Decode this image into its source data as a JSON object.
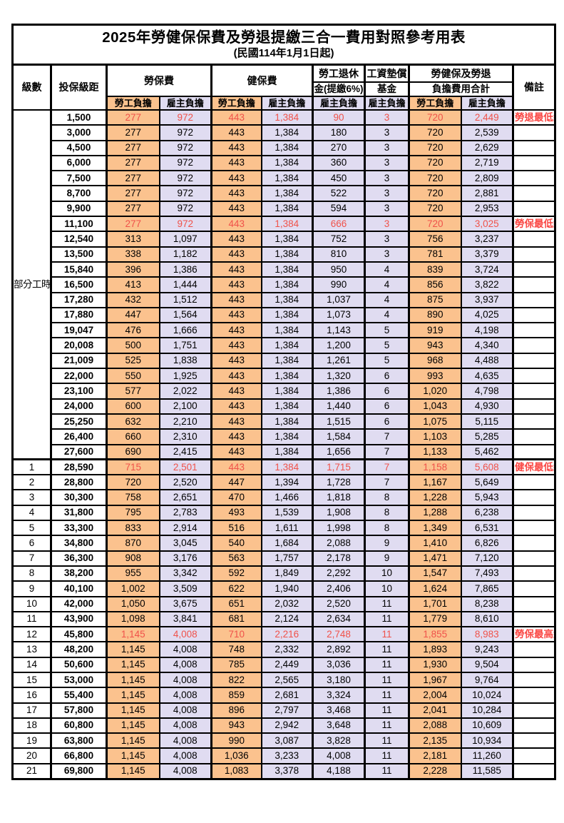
{
  "title": "2025年勞健保保費及勞退提繳三合一費用對照參考用表",
  "subtitle": "(民國114年1月1日起)",
  "colors": {
    "employee_bg": "#FBC28E",
    "employer_bg": "#E0DCF1",
    "key_value_red": "#F0524A",
    "remark_red": "#FA4642",
    "border": "#000000"
  },
  "columns": {
    "level": "級數",
    "bracket": "投保級距",
    "labor_fee": "勞保費",
    "health_fee": "健保費",
    "pension_line1": "勞工退休",
    "pension_line2": "金(提繳6%)",
    "wage_fund_line1": "工資墊償",
    "wage_fund_line2": "基金",
    "total_line1": "勞健保及勞退",
    "total_line2": "負擔費用合計",
    "remark": "備註",
    "employee": "勞工負擔",
    "employer": "雇主負擔"
  },
  "part_time_label": "部分工時",
  "rows": [
    {
      "l": "",
      "b": "1,500",
      "v": [
        "277",
        "972",
        "443",
        "1,384",
        "90",
        "3",
        "720",
        "2,449"
      ],
      "r": "勞退最低級距",
      "k": true
    },
    {
      "l": "",
      "b": "3,000",
      "v": [
        "277",
        "972",
        "443",
        "1,384",
        "180",
        "3",
        "720",
        "2,539"
      ],
      "r": "",
      "k": false
    },
    {
      "l": "",
      "b": "4,500",
      "v": [
        "277",
        "972",
        "443",
        "1,384",
        "270",
        "3",
        "720",
        "2,629"
      ],
      "r": "",
      "k": false
    },
    {
      "l": "",
      "b": "6,000",
      "v": [
        "277",
        "972",
        "443",
        "1,384",
        "360",
        "3",
        "720",
        "2,719"
      ],
      "r": "",
      "k": false
    },
    {
      "l": "",
      "b": "7,500",
      "v": [
        "277",
        "972",
        "443",
        "1,384",
        "450",
        "3",
        "720",
        "2,809"
      ],
      "r": "",
      "k": false
    },
    {
      "l": "",
      "b": "8,700",
      "v": [
        "277",
        "972",
        "443",
        "1,384",
        "522",
        "3",
        "720",
        "2,881"
      ],
      "r": "",
      "k": false
    },
    {
      "l": "",
      "b": "9,900",
      "v": [
        "277",
        "972",
        "443",
        "1,384",
        "594",
        "3",
        "720",
        "2,953"
      ],
      "r": "",
      "k": false
    },
    {
      "l": "",
      "b": "11,100",
      "v": [
        "277",
        "972",
        "443",
        "1,384",
        "666",
        "3",
        "720",
        "3,025"
      ],
      "r": "勞保最低級距",
      "k": true
    },
    {
      "l": "",
      "b": "12,540",
      "v": [
        "313",
        "1,097",
        "443",
        "1,384",
        "752",
        "3",
        "756",
        "3,237"
      ],
      "r": "",
      "k": false
    },
    {
      "l": "",
      "b": "13,500",
      "v": [
        "338",
        "1,182",
        "443",
        "1,384",
        "810",
        "3",
        "781",
        "3,379"
      ],
      "r": "",
      "k": false
    },
    {
      "l": "",
      "b": "15,840",
      "v": [
        "396",
        "1,386",
        "443",
        "1,384",
        "950",
        "4",
        "839",
        "3,724"
      ],
      "r": "",
      "k": false
    },
    {
      "l": "",
      "b": "16,500",
      "v": [
        "413",
        "1,444",
        "443",
        "1,384",
        "990",
        "4",
        "856",
        "3,822"
      ],
      "r": "",
      "k": false
    },
    {
      "l": "",
      "b": "17,280",
      "v": [
        "432",
        "1,512",
        "443",
        "1,384",
        "1,037",
        "4",
        "875",
        "3,937"
      ],
      "r": "",
      "k": false
    },
    {
      "l": "",
      "b": "17,880",
      "v": [
        "447",
        "1,564",
        "443",
        "1,384",
        "1,073",
        "4",
        "890",
        "4,025"
      ],
      "r": "",
      "k": false
    },
    {
      "l": "",
      "b": "19,047",
      "v": [
        "476",
        "1,666",
        "443",
        "1,384",
        "1,143",
        "5",
        "919",
        "4,198"
      ],
      "r": "",
      "k": false
    },
    {
      "l": "",
      "b": "20,008",
      "v": [
        "500",
        "1,751",
        "443",
        "1,384",
        "1,200",
        "5",
        "943",
        "4,340"
      ],
      "r": "",
      "k": false
    },
    {
      "l": "",
      "b": "21,009",
      "v": [
        "525",
        "1,838",
        "443",
        "1,384",
        "1,261",
        "5",
        "968",
        "4,488"
      ],
      "r": "",
      "k": false
    },
    {
      "l": "",
      "b": "22,000",
      "v": [
        "550",
        "1,925",
        "443",
        "1,384",
        "1,320",
        "6",
        "993",
        "4,635"
      ],
      "r": "",
      "k": false
    },
    {
      "l": "",
      "b": "23,100",
      "v": [
        "577",
        "2,022",
        "443",
        "1,384",
        "1,386",
        "6",
        "1,020",
        "4,798"
      ],
      "r": "",
      "k": false
    },
    {
      "l": "",
      "b": "24,000",
      "v": [
        "600",
        "2,100",
        "443",
        "1,384",
        "1,440",
        "6",
        "1,043",
        "4,930"
      ],
      "r": "",
      "k": false
    },
    {
      "l": "",
      "b": "25,250",
      "v": [
        "632",
        "2,210",
        "443",
        "1,384",
        "1,515",
        "6",
        "1,075",
        "5,115"
      ],
      "r": "",
      "k": false
    },
    {
      "l": "",
      "b": "26,400",
      "v": [
        "660",
        "2,310",
        "443",
        "1,384",
        "1,584",
        "7",
        "1,103",
        "5,285"
      ],
      "r": "",
      "k": false
    },
    {
      "l": "",
      "b": "27,600",
      "v": [
        "690",
        "2,415",
        "443",
        "1,384",
        "1,656",
        "7",
        "1,133",
        "5,462"
      ],
      "r": "",
      "k": false
    },
    {
      "l": "1",
      "b": "28,590",
      "v": [
        "715",
        "2,501",
        "443",
        "1,384",
        "1,715",
        "7",
        "1,158",
        "5,608"
      ],
      "r": "健保最低級距",
      "k": true
    },
    {
      "l": "2",
      "b": "28,800",
      "v": [
        "720",
        "2,520",
        "447",
        "1,394",
        "1,728",
        "7",
        "1,167",
        "5,649"
      ],
      "r": "",
      "k": false
    },
    {
      "l": "3",
      "b": "30,300",
      "v": [
        "758",
        "2,651",
        "470",
        "1,466",
        "1,818",
        "8",
        "1,228",
        "5,943"
      ],
      "r": "",
      "k": false
    },
    {
      "l": "4",
      "b": "31,800",
      "v": [
        "795",
        "2,783",
        "493",
        "1,539",
        "1,908",
        "8",
        "1,288",
        "6,238"
      ],
      "r": "",
      "k": false
    },
    {
      "l": "5",
      "b": "33,300",
      "v": [
        "833",
        "2,914",
        "516",
        "1,611",
        "1,998",
        "8",
        "1,349",
        "6,531"
      ],
      "r": "",
      "k": false
    },
    {
      "l": "6",
      "b": "34,800",
      "v": [
        "870",
        "3,045",
        "540",
        "1,684",
        "2,088",
        "9",
        "1,410",
        "6,826"
      ],
      "r": "",
      "k": false
    },
    {
      "l": "7",
      "b": "36,300",
      "v": [
        "908",
        "3,176",
        "563",
        "1,757",
        "2,178",
        "9",
        "1,471",
        "7,120"
      ],
      "r": "",
      "k": false
    },
    {
      "l": "8",
      "b": "38,200",
      "v": [
        "955",
        "3,342",
        "592",
        "1,849",
        "2,292",
        "10",
        "1,547",
        "7,493"
      ],
      "r": "",
      "k": false
    },
    {
      "l": "9",
      "b": "40,100",
      "v": [
        "1,002",
        "3,509",
        "622",
        "1,940",
        "2,406",
        "10",
        "1,624",
        "7,865"
      ],
      "r": "",
      "k": false
    },
    {
      "l": "10",
      "b": "42,000",
      "v": [
        "1,050",
        "3,675",
        "651",
        "2,032",
        "2,520",
        "11",
        "1,701",
        "8,238"
      ],
      "r": "",
      "k": false
    },
    {
      "l": "11",
      "b": "43,900",
      "v": [
        "1,098",
        "3,841",
        "681",
        "2,124",
        "2,634",
        "11",
        "1,779",
        "8,610"
      ],
      "r": "",
      "k": false
    },
    {
      "l": "12",
      "b": "45,800",
      "v": [
        "1,145",
        "4,008",
        "710",
        "2,216",
        "2,748",
        "11",
        "1,855",
        "8,983"
      ],
      "r": "勞保最高級距",
      "k": true
    },
    {
      "l": "13",
      "b": "48,200",
      "v": [
        "1,145",
        "4,008",
        "748",
        "2,332",
        "2,892",
        "11",
        "1,893",
        "9,243"
      ],
      "r": "",
      "k": false
    },
    {
      "l": "14",
      "b": "50,600",
      "v": [
        "1,145",
        "4,008",
        "785",
        "2,449",
        "3,036",
        "11",
        "1,930",
        "9,504"
      ],
      "r": "",
      "k": false
    },
    {
      "l": "15",
      "b": "53,000",
      "v": [
        "1,145",
        "4,008",
        "822",
        "2,565",
        "3,180",
        "11",
        "1,967",
        "9,764"
      ],
      "r": "",
      "k": false
    },
    {
      "l": "16",
      "b": "55,400",
      "v": [
        "1,145",
        "4,008",
        "859",
        "2,681",
        "3,324",
        "11",
        "2,004",
        "10,024"
      ],
      "r": "",
      "k": false
    },
    {
      "l": "17",
      "b": "57,800",
      "v": [
        "1,145",
        "4,008",
        "896",
        "2,797",
        "3,468",
        "11",
        "2,041",
        "10,284"
      ],
      "r": "",
      "k": false
    },
    {
      "l": "18",
      "b": "60,800",
      "v": [
        "1,145",
        "4,008",
        "943",
        "2,942",
        "3,648",
        "11",
        "2,088",
        "10,609"
      ],
      "r": "",
      "k": false
    },
    {
      "l": "19",
      "b": "63,800",
      "v": [
        "1,145",
        "4,008",
        "990",
        "3,087",
        "3,828",
        "11",
        "2,135",
        "10,934"
      ],
      "r": "",
      "k": false
    },
    {
      "l": "20",
      "b": "66,800",
      "v": [
        "1,145",
        "4,008",
        "1,036",
        "3,233",
        "4,008",
        "11",
        "2,181",
        "11,260"
      ],
      "r": "",
      "k": false
    },
    {
      "l": "21",
      "b": "69,800",
      "v": [
        "1,145",
        "4,008",
        "1,083",
        "3,378",
        "4,188",
        "11",
        "2,228",
        "11,585"
      ],
      "r": "",
      "k": false
    }
  ]
}
